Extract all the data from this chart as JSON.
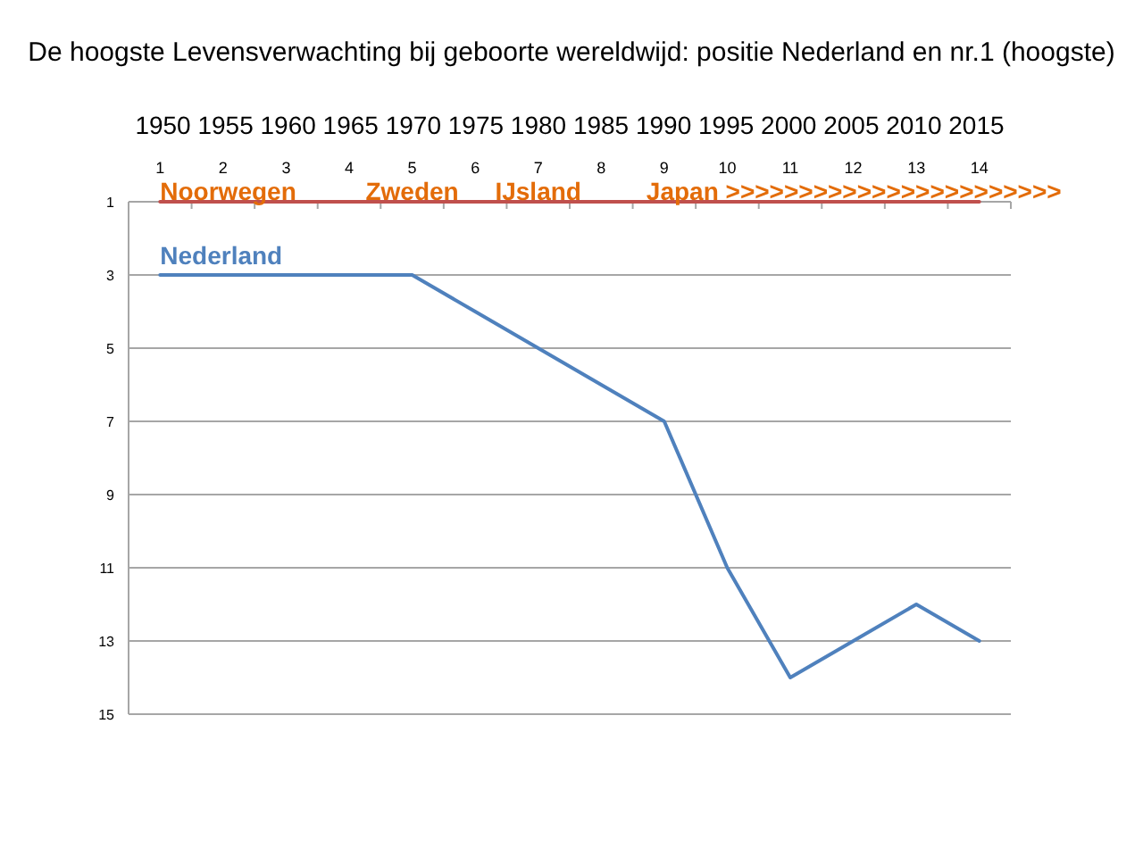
{
  "chart_data": {
    "type": "line",
    "title": "De hoogste Levensverwachting bij geboorte wereldwijd: positie Nederland en nr.1 (hoogste)",
    "x2label": "1950 1955 1960 1965 1970 1975 1980 1985 1990 1995 2000 2005 2010 2015",
    "x": [
      1,
      2,
      3,
      4,
      5,
      6,
      7,
      8,
      9,
      10,
      11,
      12,
      13,
      14
    ],
    "xlim": [
      0.5,
      14.5
    ],
    "xticks": [
      1,
      2,
      3,
      4,
      5,
      6,
      7,
      8,
      9,
      10,
      11,
      12,
      13,
      14
    ],
    "series": [
      {
        "name": "Nederland",
        "color": "#4f81bd",
        "values": [
          3,
          3,
          3,
          3,
          3,
          4,
          5,
          6,
          7,
          11,
          14,
          13,
          12,
          13
        ]
      },
      {
        "color": "#c0504d",
        "values": [
          1,
          1,
          1,
          1,
          1,
          1,
          1,
          1,
          1,
          1,
          1,
          1,
          1,
          1
        ]
      }
    ],
    "ylim": [
      15,
      1
    ],
    "yticks": [
      1,
      3,
      5,
      7,
      9,
      11,
      13,
      15
    ],
    "grid": "y",
    "marker": "none",
    "line_style": "solid",
    "annotations": [
      {
        "text": "Noorwegen",
        "x": 1,
        "y": 1
      },
      {
        "text": "Zweden",
        "x": 5,
        "y": 1
      },
      {
        "text": "IJsland",
        "x": 7,
        "y": 1
      },
      {
        "text": "Japan >>>>>>>>>>>>>>>>>>>>>>>",
        "x": 9,
        "y": 1
      }
    ]
  }
}
